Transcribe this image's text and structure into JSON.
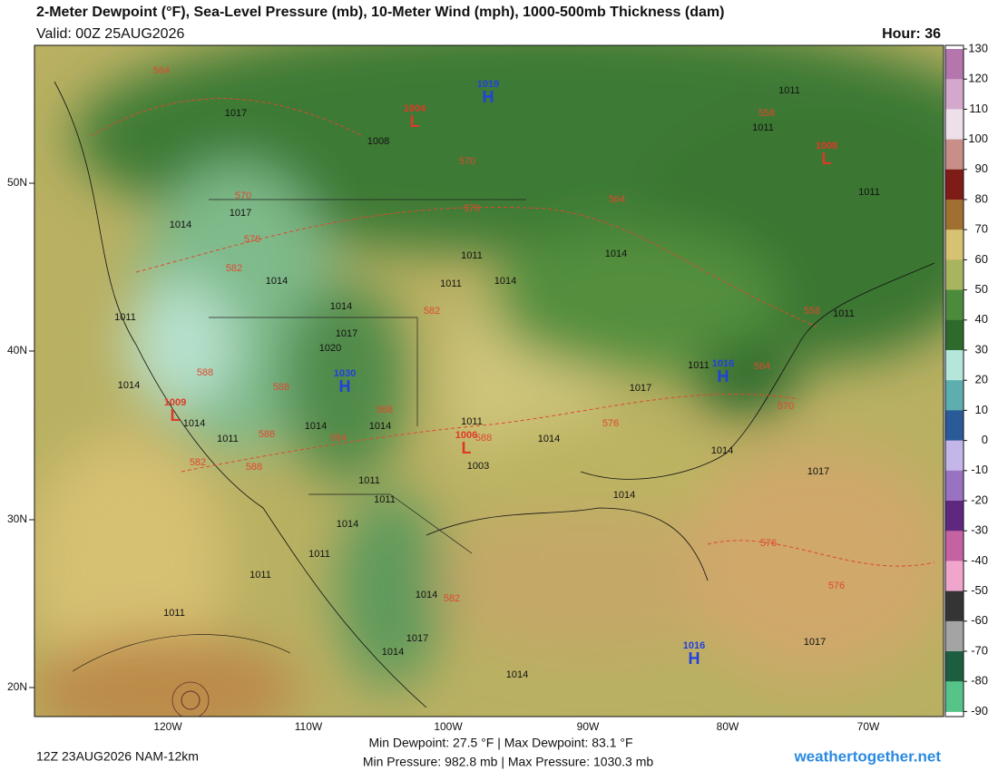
{
  "header": {
    "title": "2-Meter Dewpoint (°F), Sea-Level Pressure (mb), 10-Meter Wind (mph), 1000-500mb Thickness (dam)",
    "valid": "Valid: 00Z 25AUG2026",
    "hour": "Hour: 36"
  },
  "map": {
    "lat_labels": [
      "50N",
      "40N",
      "30N",
      "20N"
    ],
    "lon_labels": [
      "120W",
      "110W",
      "100W",
      "90W",
      "80W",
      "70W"
    ],
    "pressure_labels": [
      "1017",
      "1008",
      "1014",
      "1017",
      "1011",
      "1011",
      "1014",
      "1014",
      "1014",
      "1011",
      "1011",
      "1011",
      "1011",
      "1011",
      "1017",
      "1011",
      "1014",
      "1014",
      "1014",
      "1017",
      "1017",
      "1014",
      "1011",
      "1003",
      "1011",
      "1011",
      "1014",
      "1014",
      "1017",
      "1014",
      "1011",
      "1011",
      "1011",
      "1017",
      "1020",
      "1014",
      "1014",
      "1014",
      "1011",
      "1014",
      "1014"
    ],
    "thickness_labels": [
      "564",
      "558",
      "570",
      "564",
      "576",
      "570",
      "576",
      "582",
      "582",
      "588",
      "588",
      "588",
      "588",
      "588",
      "582",
      "594",
      "576",
      "564",
      "570",
      "558",
      "576",
      "576",
      "582",
      "588"
    ],
    "centers": [
      {
        "type": "L",
        "value": "1004"
      },
      {
        "type": "H",
        "value": "1019"
      },
      {
        "type": "L",
        "value": "1008"
      },
      {
        "type": "H",
        "value": "1016"
      },
      {
        "type": "H",
        "value": "1030"
      },
      {
        "type": "L",
        "value": "1009"
      },
      {
        "type": "L",
        "value": "1006"
      },
      {
        "type": "H",
        "value": "1016"
      }
    ]
  },
  "colorbar": {
    "ticks": [
      130,
      120,
      110,
      100,
      90,
      80,
      70,
      60,
      50,
      40,
      30,
      20,
      10,
      0,
      -10,
      -20,
      -30,
      -40,
      -50,
      -60,
      -70,
      -80,
      -90
    ],
    "colors": [
      "#b476ac",
      "#d4a8cc",
      "#eee0ea",
      "#c88e88",
      "#7e1c18",
      "#a07032",
      "#d6c272",
      "#a8b45e",
      "#4c8a3c",
      "#2e6a2c",
      "#b4e6dc",
      "#5eaeb0",
      "#2a5a98",
      "#c4b6e8",
      "#9a72c2",
      "#5e287e",
      "#c462a2",
      "#f0a6cc",
      "#343434",
      "#a4a4a4",
      "#1e5e40",
      "#56c488"
    ]
  },
  "footer": {
    "run": "12Z 23AUG2026 NAM-12km",
    "dewpoint": "Min Dewpoint:  27.5 °F | Max Dewpoint:  83.1 °F",
    "pressure": "Min Pressure: 982.8 mb | Max Pressure: 1030.3 mb",
    "site": "weathertogether.net"
  }
}
